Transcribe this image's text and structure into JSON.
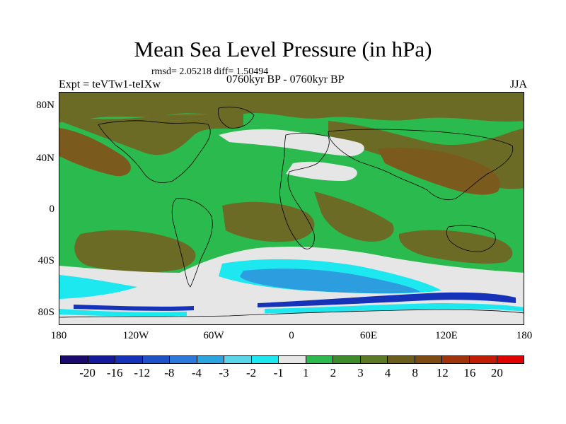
{
  "title": "Mean Sea Level Pressure (in hPa)",
  "stats": "rmsd= 2.05218 diff= 1.50494",
  "expt_label": "Expt = teVTw1-teIXw",
  "period_label": "0760kyr BP - 0760kyr BP",
  "season": "JJA",
  "lat_labels": [
    "80N",
    "40N",
    "0",
    "40S",
    "80S"
  ],
  "lon_labels": [
    "180",
    "120W",
    "60W",
    "0",
    "60E",
    "120E",
    "180"
  ],
  "colorbar": {
    "colors": [
      "#1b0a6e",
      "#141a9c",
      "#1532b8",
      "#1f51c9",
      "#2c78dd",
      "#2aa5e0",
      "#58d5e8",
      "#1de8ef",
      "#e6e6e6",
      "#2bba4e",
      "#3e8b2b",
      "#5a7a25",
      "#6b5d1d",
      "#7d4a14",
      "#a0320c",
      "#c21b06",
      "#e00000"
    ],
    "labels": [
      "-20",
      "-16",
      "-12",
      "-8",
      "-4",
      "-3",
      "-2",
      "-1",
      "1",
      "2",
      "3",
      "4",
      "8",
      "12",
      "16",
      "20"
    ]
  },
  "map_colors": {
    "green": "#2bba4e",
    "olive": "#6b6b25",
    "brown": "#7b5a1e",
    "light_gray": "#e6e6e6",
    "light_cyan": "#1de8ef",
    "mid_blue": "#2c9ee0",
    "deep_blue": "#1532b8",
    "coast": "#000000"
  }
}
